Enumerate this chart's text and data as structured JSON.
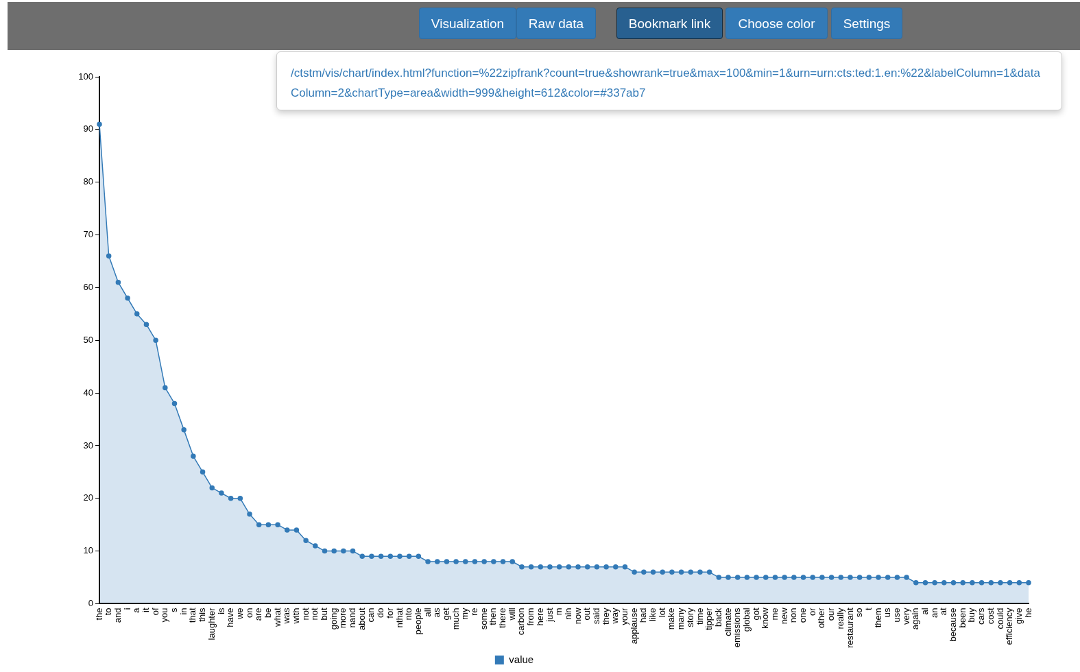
{
  "chart_data": {
    "type": "area",
    "categories": [
      "the",
      "to",
      "and",
      "i",
      "a",
      "it",
      "of",
      "you",
      "s",
      "in",
      "that",
      "this",
      "laughter",
      "is",
      "have",
      "we",
      "on",
      "are",
      "be",
      "what",
      "was",
      "with",
      "not",
      "not",
      "but",
      "going",
      "more",
      "nand",
      "about",
      "can",
      "do",
      "for",
      "nthat",
      "nto",
      "people",
      "all",
      "as",
      "get",
      "much",
      "my",
      "re",
      "some",
      "then",
      "there",
      "will",
      "carbon",
      "from",
      "here",
      "just",
      "m",
      "nin",
      "now",
      "out",
      "said",
      "they",
      "way",
      "your",
      "applause",
      "had",
      "like",
      "lot",
      "make",
      "many",
      "story",
      "time",
      "tipper",
      "back",
      "climate",
      "emissions",
      "global",
      "got",
      "know",
      "me",
      "new",
      "non",
      "one",
      "or",
      "other",
      "our",
      "really",
      "restaurant",
      "so",
      "t",
      "them",
      "us",
      "use",
      "very",
      "again",
      "al",
      "an",
      "at",
      "because",
      "been",
      "buy",
      "cars",
      "cost",
      "could",
      "efficiency",
      "give",
      "he"
    ],
    "series": [
      {
        "name": "value",
        "color": "#337ab7",
        "values": [
          91,
          66,
          61,
          58,
          55,
          53,
          50,
          41,
          38,
          33,
          28,
          25,
          22,
          21,
          20,
          20,
          17,
          15,
          15,
          15,
          14,
          14,
          12,
          11,
          10,
          10,
          10,
          10,
          9,
          9,
          9,
          9,
          9,
          9,
          9,
          8,
          8,
          8,
          8,
          8,
          8,
          8,
          8,
          8,
          8,
          7,
          7,
          7,
          7,
          7,
          7,
          7,
          7,
          7,
          7,
          7,
          7,
          6,
          6,
          6,
          6,
          6,
          6,
          6,
          6,
          6,
          5,
          5,
          5,
          5,
          5,
          5,
          5,
          5,
          5,
          5,
          5,
          5,
          5,
          5,
          5,
          5,
          5,
          5,
          5,
          5,
          5,
          4,
          4,
          4,
          4,
          4,
          4,
          4,
          4,
          4,
          4,
          4,
          4,
          4
        ]
      }
    ],
    "ylim": [
      0,
      100
    ],
    "yticks": [
      0,
      10,
      20,
      30,
      40,
      50,
      60,
      70,
      80,
      90,
      100
    ],
    "grid": false,
    "legend": "bottom",
    "marker": "circle",
    "annotations": [
      "Visualization",
      "Raw data",
      "Bookmark link",
      "Choose color",
      "Settings",
      "/ctstm/vis/chart/index.html?function=%22zipfrank?count=true&showrank=true&max=100&min=1&urn=urn:cts:ted:1.en:%22&labelColumn=1&dataColumn=2&chartType=area&width=999&height=612&color=#337ab7"
    ]
  }
}
